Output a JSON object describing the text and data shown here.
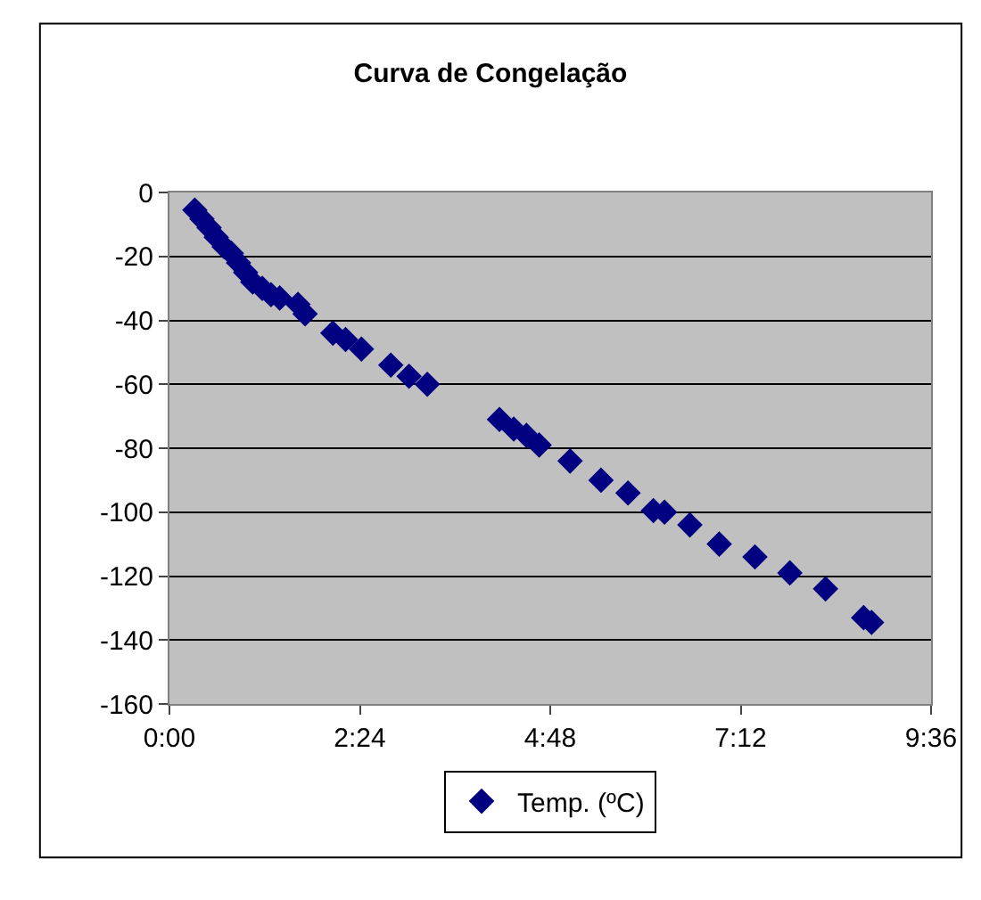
{
  "chart_data": {
    "type": "scatter",
    "title": "Curva de Congelação",
    "x": [
      0.32,
      0.41,
      0.5,
      0.59,
      0.69,
      0.78,
      0.87,
      0.96,
      1.05,
      1.17,
      1.28,
      1.39,
      1.62,
      1.71,
      2.06,
      2.22,
      2.42,
      2.79,
      3.02,
      3.25,
      4.16,
      4.34,
      4.5,
      4.66,
      5.05,
      5.44,
      5.78,
      6.1,
      6.24,
      6.56,
      6.93,
      7.38,
      7.82,
      8.27,
      8.75,
      8.85
    ],
    "series": [
      {
        "name": "Temp. (ºC)",
        "color": "#000080",
        "values": [
          -5.5,
          -8.3,
          -11,
          -14,
          -17,
          -19,
          -22,
          -25,
          -28,
          -30,
          -32,
          -33,
          -35,
          -38,
          -44,
          -46,
          -49,
          -54,
          -57.5,
          -60,
          -71,
          -74,
          -76,
          -79,
          -84,
          -90,
          -94,
          -99.5,
          -100,
          -104,
          -110,
          -114,
          -119,
          -124,
          -133,
          -134.5
        ]
      }
    ],
    "xlim": [
      0,
      9.6
    ],
    "xticks": [
      {
        "value": 0,
        "label": "0:00"
      },
      {
        "value": 2.4,
        "label": "2:24"
      },
      {
        "value": 4.8,
        "label": "4:48"
      },
      {
        "value": 7.2,
        "label": "7:12"
      },
      {
        "value": 9.6,
        "label": "9:36"
      }
    ],
    "ylim": [
      -160,
      0
    ],
    "yticks": [
      -160,
      -140,
      -120,
      -100,
      -80,
      -60,
      -40,
      -20,
      0
    ],
    "grid": "y",
    "legend": "bottom",
    "marker": "diamond"
  }
}
